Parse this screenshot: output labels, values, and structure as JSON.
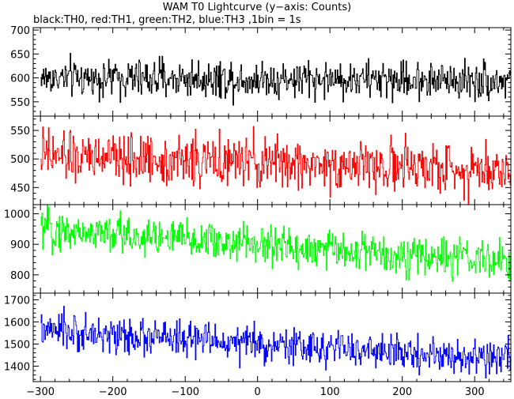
{
  "chart_data": {
    "type": "line",
    "title": "WAM T0 Lightcurve (y−axis: Counts)",
    "subtitle": "black:TH0, red:TH1, green:TH2, blue:TH3 ,1bin = 1s",
    "xlim": [
      -310,
      350
    ],
    "x_ticks": [
      "−300",
      "−200",
      "−100",
      "0",
      "100",
      "200",
      "300"
    ],
    "x_tick_values": [
      -300,
      -200,
      -100,
      0,
      100,
      200,
      300
    ],
    "bin_seconds": 1,
    "x_start": -300,
    "x_end": 349,
    "grid": false,
    "panels": [
      {
        "series_name": "TH0",
        "color": "#000000",
        "ylim": [
          520,
          705
        ],
        "y_ticks": [
          550,
          600,
          650,
          700
        ],
        "trend": [
          [
            -300,
            600
          ],
          [
            349,
            595
          ]
        ],
        "noise": 20
      },
      {
        "series_name": "TH1",
        "color": "#ff0000",
        "ylim": [
          420,
          575
        ],
        "y_ticks": [
          450,
          500,
          550
        ],
        "trend": [
          [
            -300,
            505
          ],
          [
            349,
            480
          ]
        ],
        "noise": 22
      },
      {
        "series_name": "TH2",
        "color": "#00ff00",
        "ylim": [
          740,
          1030
        ],
        "y_ticks": [
          800,
          900,
          1000
        ],
        "trend": [
          [
            -300,
            950
          ],
          [
            349,
            840
          ]
        ],
        "noise": 33
      },
      {
        "series_name": "TH3",
        "color": "#0000ff",
        "ylim": [
          1330,
          1730
        ],
        "y_ticks": [
          1400,
          1500,
          1600,
          1700
        ],
        "trend": [
          [
            -300,
            1560
          ],
          [
            349,
            1430
          ]
        ],
        "noise": 40
      }
    ]
  }
}
